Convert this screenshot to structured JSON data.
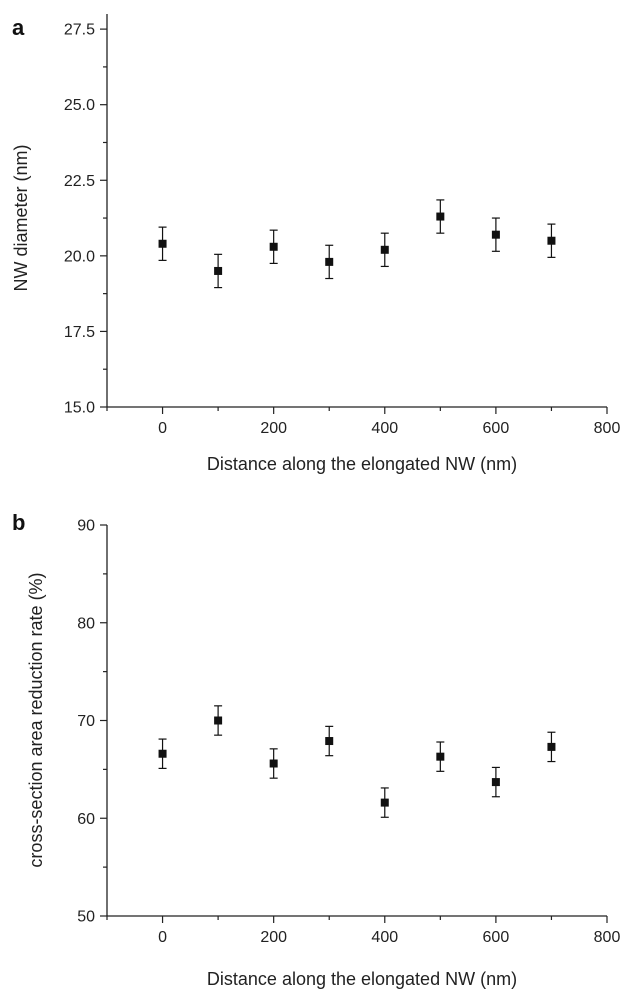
{
  "chart_data": [
    {
      "panel": "a",
      "type": "scatter",
      "xlabel": "Distance along the elongated NW (nm)",
      "ylabel": "NW diameter (nm)",
      "xlim": [
        -100,
        800
      ],
      "ylim": [
        15.0,
        28.0
      ],
      "xticks": [
        "0",
        "200",
        "400",
        "600",
        "800"
      ],
      "yticks": [
        "15.0",
        "17.5",
        "20.0",
        "22.5",
        "25.0",
        "27.5"
      ],
      "x": [
        0,
        100,
        200,
        300,
        400,
        500,
        600,
        700
      ],
      "y": [
        20.4,
        19.5,
        20.3,
        19.8,
        20.2,
        21.3,
        20.7,
        20.5
      ],
      "error": [
        0.55,
        0.55,
        0.55,
        0.55,
        0.55,
        0.55,
        0.55,
        0.55
      ],
      "marker": "square",
      "grid": false
    },
    {
      "panel": "b",
      "type": "scatter",
      "xlabel": "Distance along the elongated NW (nm)",
      "ylabel": "cross-section area reduction rate (%)",
      "xlim": [
        -100,
        800
      ],
      "ylim": [
        50,
        90
      ],
      "xticks": [
        "0",
        "200",
        "400",
        "600",
        "800"
      ],
      "yticks": [
        "50",
        "60",
        "70",
        "80",
        "90"
      ],
      "x": [
        0,
        100,
        200,
        300,
        400,
        500,
        600,
        700
      ],
      "y": [
        66.6,
        70.0,
        65.6,
        67.9,
        61.6,
        66.3,
        63.7,
        67.3
      ],
      "error": [
        1.5,
        1.5,
        1.5,
        1.5,
        1.5,
        1.5,
        1.5,
        1.5
      ],
      "marker": "square",
      "grid": false
    }
  ]
}
